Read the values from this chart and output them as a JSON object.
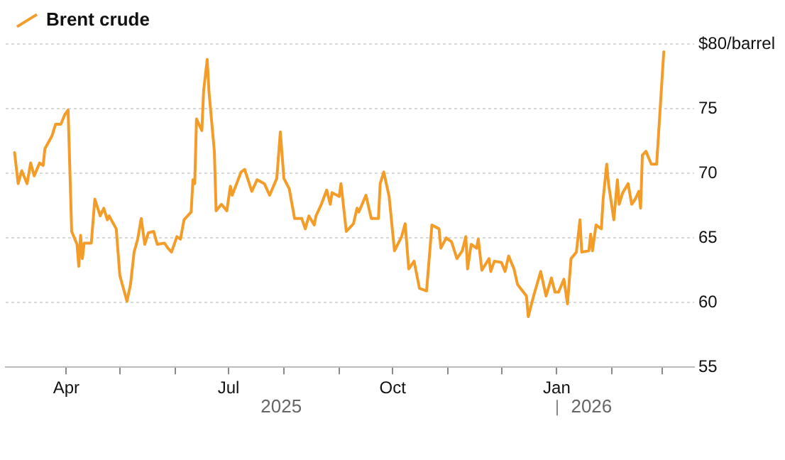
{
  "chart_data": {
    "type": "line",
    "legend": "top left",
    "grid": "y",
    "line_style": "solid",
    "marker": "none",
    "xlim": [
      "2025-02-26",
      "2026-03-19"
    ],
    "xticks": [
      {
        "value": "2025-04-01",
        "label": "Apr"
      },
      {
        "value": "2025-05-01",
        "label": null
      },
      {
        "value": "2025-06-01",
        "label": null
      },
      {
        "value": "2025-07-01",
        "label": "Jul"
      },
      {
        "value": "2025-08-01",
        "label": null
      },
      {
        "value": "2025-09-01",
        "label": null
      },
      {
        "value": "2025-10-01",
        "label": "Oct"
      },
      {
        "value": "2025-11-01",
        "label": null
      },
      {
        "value": "2025-12-01",
        "label": null
      },
      {
        "value": "2026-01-01",
        "label": "Jan"
      },
      {
        "value": "2026-02-01",
        "label": null
      },
      {
        "value": "2026-03-01",
        "label": null
      }
    ],
    "ylim": [
      55,
      80
    ],
    "yticks": [
      55,
      60,
      65,
      70,
      75,
      {
        "value": 80,
        "label": "$80/barrel"
      }
    ],
    "annotations": [
      "2025",
      "2026"
    ],
    "series": [
      {
        "name": "Brent crude",
        "color": "#f39c27",
        "x": [
          "2025-03-03",
          "2025-03-05",
          "2025-03-07",
          "2025-03-10",
          "2025-03-12",
          "2025-03-14",
          "2025-03-17",
          "2025-03-19",
          "2025-03-20",
          "2025-03-24",
          "2025-03-26",
          "2025-03-29",
          "2025-03-31",
          "2025-04-02",
          "2025-04-04",
          "2025-04-07",
          "2025-04-08",
          "2025-04-09",
          "2025-04-10",
          "2025-04-11",
          "2025-04-15",
          "2025-04-17",
          "2025-04-20",
          "2025-04-22",
          "2025-04-24",
          "2025-04-25",
          "2025-04-29",
          "2025-05-01",
          "2025-05-05",
          "2025-05-07",
          "2025-05-09",
          "2025-05-11",
          "2025-05-13",
          "2025-05-15",
          "2025-05-17",
          "2025-05-20",
          "2025-05-22",
          "2025-05-26",
          "2025-05-28",
          "2025-05-30",
          "2025-06-02",
          "2025-06-04",
          "2025-06-06",
          "2025-06-10",
          "2025-06-11",
          "2025-06-12",
          "2025-06-13",
          "2025-06-16",
          "2025-06-17",
          "2025-06-19",
          "2025-06-20",
          "2025-06-23",
          "2025-06-24",
          "2025-06-27",
          "2025-06-30",
          "2025-07-02",
          "2025-07-03",
          "2025-07-08",
          "2025-07-10",
          "2025-07-14",
          "2025-07-17",
          "2025-07-21",
          "2025-07-24",
          "2025-07-28",
          "2025-07-30",
          "2025-08-01",
          "2025-08-04",
          "2025-08-07",
          "2025-08-11",
          "2025-08-13",
          "2025-08-15",
          "2025-08-18",
          "2025-08-19",
          "2025-08-22",
          "2025-08-25",
          "2025-08-27",
          "2025-08-28",
          "2025-09-01",
          "2025-09-02",
          "2025-09-05",
          "2025-09-09",
          "2025-09-11",
          "2025-09-12",
          "2025-09-16",
          "2025-09-19",
          "2025-09-23",
          "2025-09-24",
          "2025-09-26",
          "2025-09-29",
          "2025-10-02",
          "2025-10-06",
          "2025-10-08",
          "2025-10-10",
          "2025-10-13",
          "2025-10-16",
          "2025-10-20",
          "2025-10-23",
          "2025-10-27",
          "2025-10-28",
          "2025-10-31",
          "2025-11-03",
          "2025-11-06",
          "2025-11-09",
          "2025-11-11",
          "2025-11-12",
          "2025-11-14",
          "2025-11-17",
          "2025-11-18",
          "2025-11-20",
          "2025-11-24",
          "2025-11-25",
          "2025-11-27",
          "2025-12-01",
          "2025-12-03",
          "2025-12-05",
          "2025-12-08",
          "2025-12-10",
          "2025-12-15",
          "2025-12-16",
          "2025-12-19",
          "2025-12-23",
          "2025-12-26",
          "2025-12-29",
          "2025-12-31",
          "2026-01-02",
          "2026-01-05",
          "2026-01-07",
          "2026-01-09",
          "2026-01-12",
          "2026-01-14",
          "2026-01-15",
          "2026-01-19",
          "2026-01-20",
          "2026-01-21",
          "2026-01-23",
          "2026-01-26",
          "2026-01-27",
          "2026-01-29",
          "2026-01-30",
          "2026-02-02",
          "2026-02-04",
          "2026-02-05",
          "2026-02-07",
          "2026-02-10",
          "2026-02-12",
          "2026-02-14",
          "2026-02-16",
          "2026-02-17",
          "2026-02-18",
          "2026-02-20",
          "2026-02-23",
          "2026-02-26",
          "2026-03-02"
        ],
        "values": [
          71.6,
          69.2,
          70.2,
          69.2,
          70.8,
          69.8,
          70.8,
          70.6,
          71.9,
          72.9,
          73.8,
          73.8,
          74.5,
          74.9,
          65.5,
          64.5,
          62.8,
          65.2,
          63.4,
          64.6,
          64.6,
          68.0,
          66.7,
          67.3,
          66.4,
          66.7,
          65.7,
          62.1,
          60.1,
          61.4,
          63.9,
          64.9,
          66.5,
          64.5,
          65.4,
          65.5,
          64.5,
          64.6,
          64.2,
          63.9,
          65.1,
          64.9,
          66.4,
          67.0,
          69.5,
          69.2,
          74.2,
          73.3,
          76.4,
          78.8,
          76.3,
          71.7,
          67.1,
          67.6,
          67.1,
          69.0,
          68.3,
          70.1,
          70.3,
          68.6,
          69.5,
          69.2,
          68.3,
          69.6,
          73.2,
          69.6,
          68.8,
          66.5,
          66.5,
          65.7,
          66.7,
          66.0,
          66.7,
          67.6,
          68.7,
          67.6,
          68.5,
          68.2,
          69.2,
          65.5,
          66.1,
          67.3,
          67.0,
          68.3,
          66.5,
          66.5,
          69.2,
          70.1,
          68.2,
          64.0,
          65.1,
          66.1,
          62.6,
          63.2,
          61.1,
          60.9,
          66.0,
          65.7,
          64.2,
          65.0,
          64.7,
          63.4,
          64.0,
          65.1,
          62.6,
          64.5,
          64.2,
          64.9,
          62.5,
          63.4,
          62.4,
          63.2,
          63.1,
          62.4,
          63.6,
          62.6,
          61.4,
          60.5,
          58.9,
          60.5,
          62.4,
          60.5,
          61.9,
          60.8,
          60.8,
          61.8,
          59.9,
          63.4,
          63.9,
          66.4,
          63.9,
          64.0,
          65.3,
          64.0,
          66.0,
          65.7,
          68.0,
          70.7,
          69.2,
          66.4,
          69.5,
          67.6,
          68.5,
          69.2,
          67.6,
          68.0,
          68.6,
          67.3,
          71.4,
          71.7,
          70.7,
          70.7,
          79.4
        ]
      }
    ]
  }
}
